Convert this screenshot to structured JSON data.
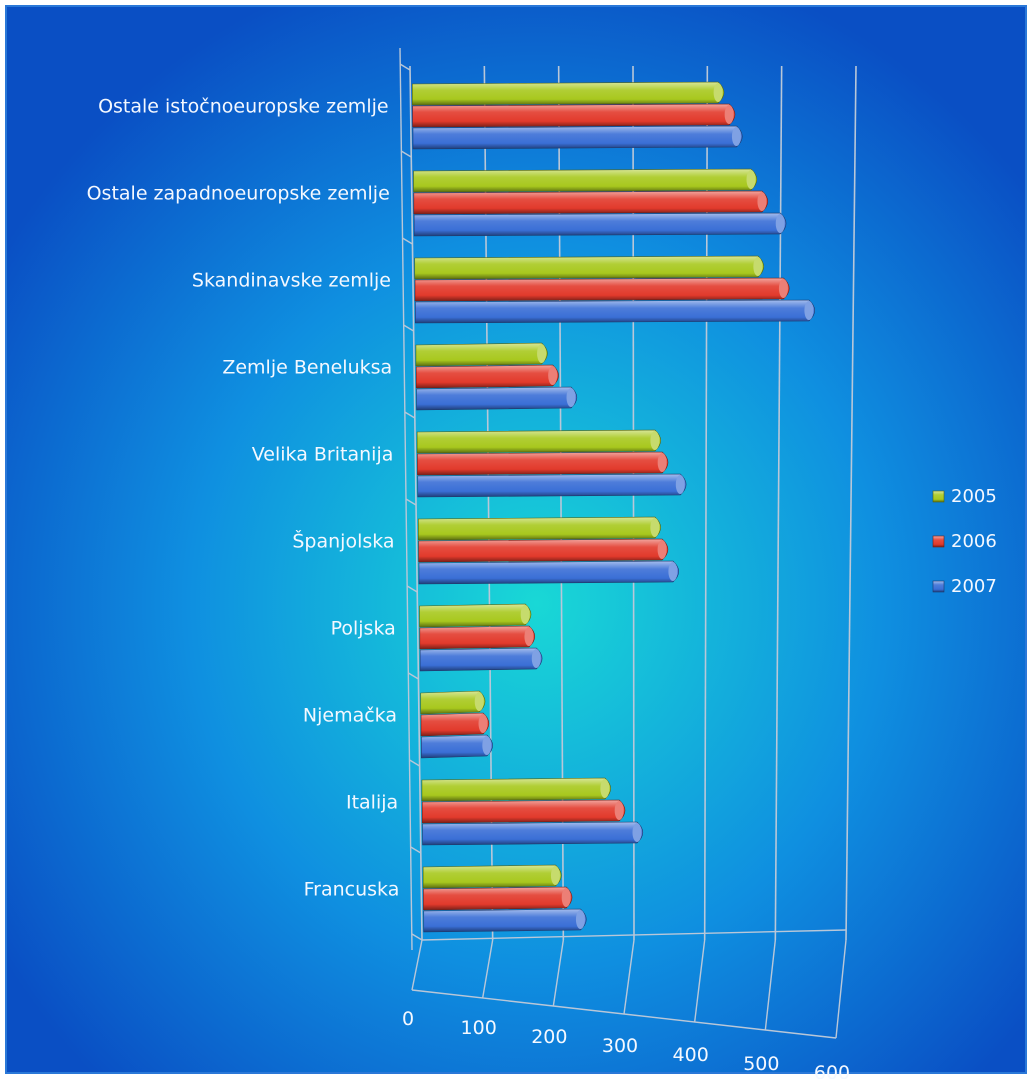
{
  "chart_data": {
    "type": "bar",
    "orientation": "horizontal",
    "style": "3d-cylinder",
    "categories": [
      "Ostale istočnoeuropske zemlje",
      "Ostale zapadnoeuropske zemlje",
      "Skandinavske zemlje",
      "Zemlje Beneluksa",
      "Velika Britanija",
      "Španjolska",
      "Poljska",
      "Njemačka",
      "Italija",
      "Francuska"
    ],
    "series": [
      {
        "name": "2005",
        "color": "#a8c81e",
        "values": [
          420,
          465,
          475,
          180,
          335,
          335,
          155,
          90,
          265,
          195
        ]
      },
      {
        "name": "2006",
        "color": "#e23a2c",
        "values": [
          435,
          480,
          510,
          195,
          345,
          345,
          160,
          95,
          285,
          210
        ]
      },
      {
        "name": "2007",
        "color": "#3a6fd6",
        "values": [
          445,
          505,
          545,
          220,
          370,
          360,
          170,
          100,
          310,
          230
        ]
      }
    ],
    "x_ticks": [
      0,
      100,
      200,
      300,
      400,
      500,
      600
    ],
    "xlim": [
      0,
      600
    ],
    "legend_position": "right",
    "grid": true,
    "background_colors": {
      "outer": "#0a57c9",
      "inner": "#19d0d8",
      "frame": "#2a78d8"
    }
  }
}
